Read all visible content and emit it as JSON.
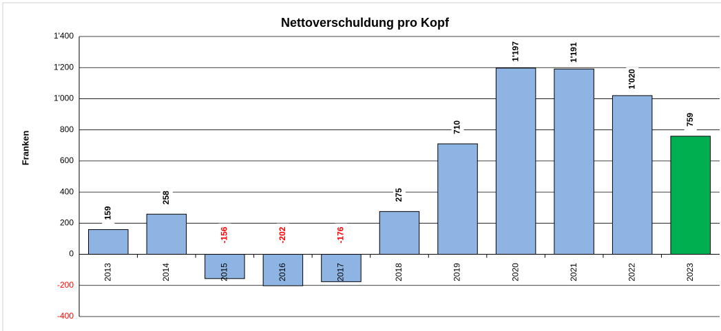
{
  "chart_data": {
    "type": "bar",
    "title": "Nettoverschuldung pro Kopf",
    "y_label": "Franken",
    "categories": [
      "2013",
      "2014",
      "2015",
      "2016",
      "2017",
      "2018",
      "2019",
      "2020",
      "2021",
      "2022",
      "2023"
    ],
    "values": [
      159,
      258,
      -156,
      -202,
      -176,
      275,
      710,
      1197,
      1191,
      1020,
      759
    ],
    "value_labels": [
      "159",
      "258",
      "-156",
      "-202",
      "-176",
      "275",
      "710",
      "1'197",
      "1'191",
      "1'020",
      "759"
    ],
    "colors": [
      "#8db4e2",
      "#8db4e2",
      "#8db4e2",
      "#8db4e2",
      "#8db4e2",
      "#8db4e2",
      "#8db4e2",
      "#8db4e2",
      "#8db4e2",
      "#8db4e2",
      "#00b050"
    ],
    "negative_label_color": "#ff0000",
    "ylim": [
      -400,
      1400
    ],
    "yticks": [
      -400,
      -200,
      0,
      200,
      400,
      600,
      800,
      {
        "value": 1000,
        "label": "1'000"
      },
      {
        "value": 1200,
        "label": "1'200"
      },
      {
        "value": 1400,
        "label": "1'400"
      }
    ],
    "grid": true
  }
}
